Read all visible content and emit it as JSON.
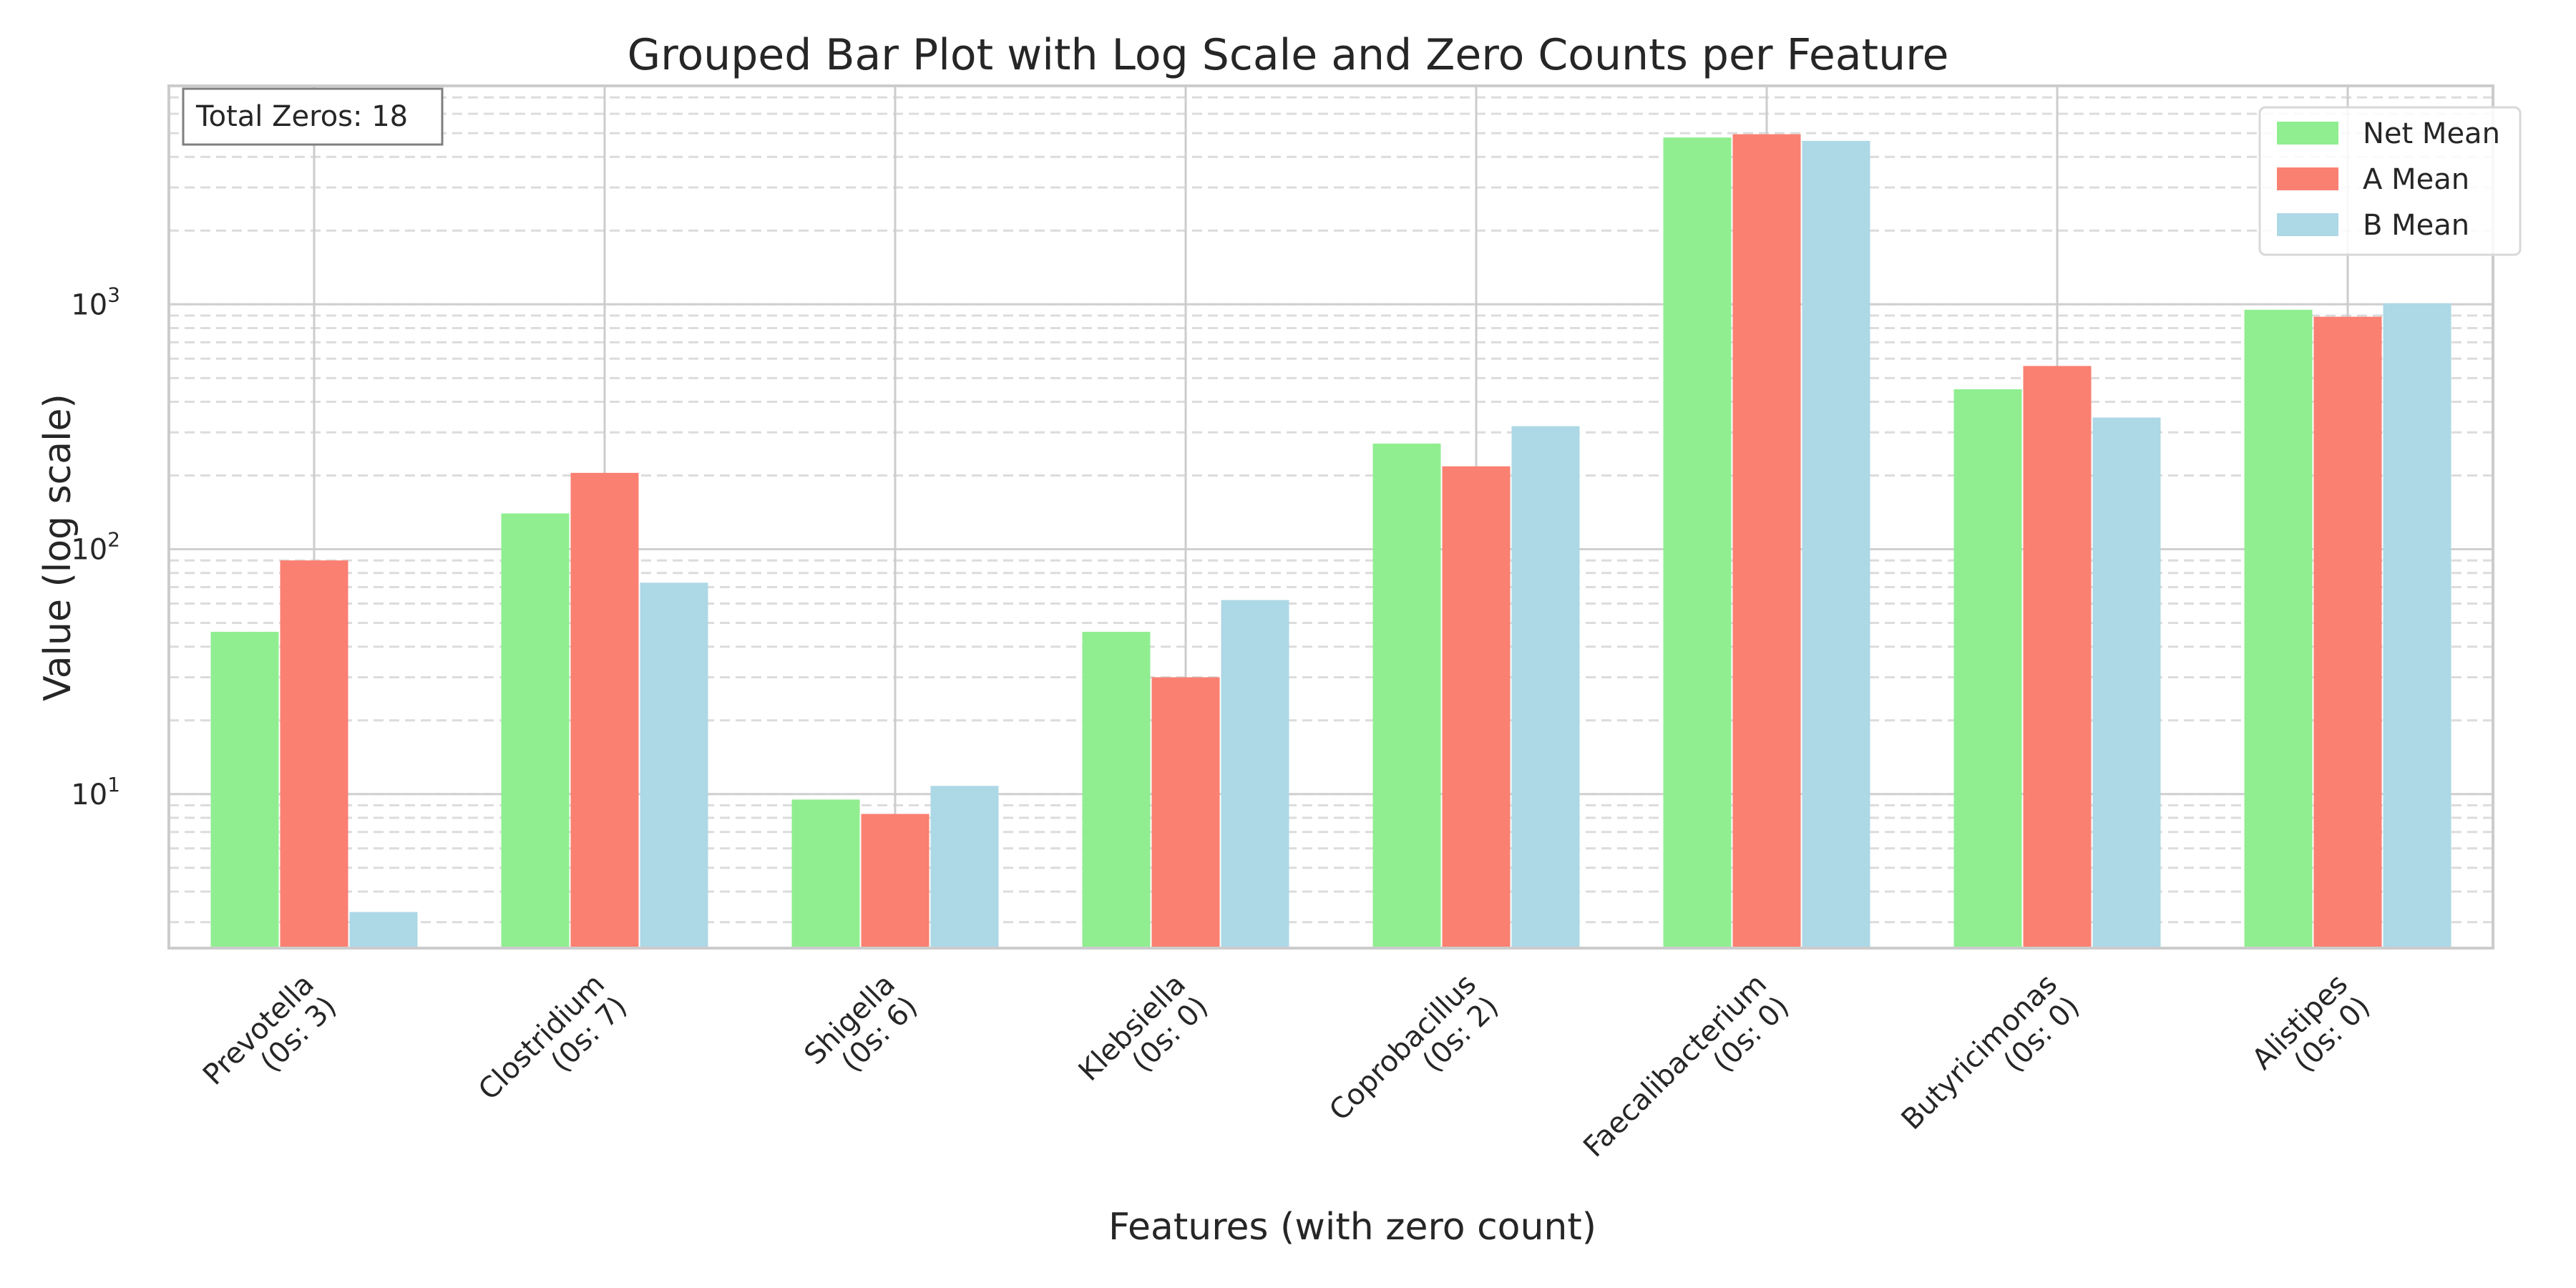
{
  "chart_data": {
    "type": "bar",
    "title": "Grouped Bar Plot with Log Scale and Zero Counts per Feature",
    "xlabel": "Features (with zero count)",
    "ylabel": "Value (log scale)",
    "yscale": "log",
    "ylim": [
      2.35,
      7800
    ],
    "yticks": [
      {
        "value": 10,
        "base": "10",
        "exp": "1"
      },
      {
        "value": 100,
        "base": "10",
        "exp": "2"
      },
      {
        "value": 1000,
        "base": "10",
        "exp": "3"
      }
    ],
    "categories": [
      {
        "name": "Prevotella",
        "zero_label": "(0s: 3)"
      },
      {
        "name": "Clostridium",
        "zero_label": "(0s: 7)"
      },
      {
        "name": "Shigella",
        "zero_label": "(0s: 6)"
      },
      {
        "name": "Klebsiella",
        "zero_label": "(0s: 0)"
      },
      {
        "name": "Coprobacillus",
        "zero_label": "(0s: 2)"
      },
      {
        "name": "Faecalibacterium",
        "zero_label": "(0s: 0)"
      },
      {
        "name": "Butyricimonas",
        "zero_label": "(0s: 0)"
      },
      {
        "name": "Alistipes",
        "zero_label": "(0s: 0)"
      }
    ],
    "series": [
      {
        "name": "Net Mean",
        "color": "#90ee90",
        "values": [
          46,
          140,
          9.5,
          46,
          270,
          4800,
          450,
          950
        ]
      },
      {
        "name": "A Mean",
        "color": "#fa8072",
        "values": [
          90,
          205,
          8.3,
          30,
          218,
          4950,
          560,
          890
        ]
      },
      {
        "name": "B Mean",
        "color": "#add8e6",
        "values": [
          3.3,
          73,
          10.8,
          62,
          318,
          4650,
          345,
          1010
        ]
      }
    ],
    "annotation": {
      "text": "Total Zeros: 18",
      "position": "top-left"
    },
    "legend": {
      "position": "top-right"
    },
    "grid": true
  }
}
